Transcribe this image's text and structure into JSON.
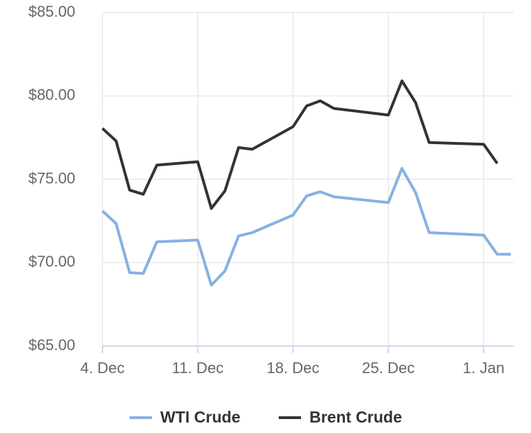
{
  "chart_data": {
    "type": "line",
    "x": [
      0,
      1,
      2,
      3,
      4,
      7,
      8,
      9,
      10,
      11,
      14,
      15,
      16,
      17,
      21,
      22,
      23,
      24,
      28,
      29,
      30
    ],
    "xlim": [
      0,
      30.2
    ],
    "xticks": [
      {
        "value": 0,
        "label": "4. Dec"
      },
      {
        "value": 7,
        "label": "11. Dec"
      },
      {
        "value": 14,
        "label": "18. Dec"
      },
      {
        "value": 21,
        "label": "25. Dec"
      },
      {
        "value": 28,
        "label": "1. Jan"
      }
    ],
    "ylim": [
      65,
      85
    ],
    "yticks": [
      {
        "value": 65,
        "label": "$65.00"
      },
      {
        "value": 70,
        "label": "$70.00"
      },
      {
        "value": 75,
        "label": "$75.00"
      },
      {
        "value": 80,
        "label": "$80.00"
      },
      {
        "value": 85,
        "label": "$85.00"
      }
    ],
    "grid": true,
    "legend": "bottom",
    "series": [
      {
        "name": "WTI Crude",
        "color": "#86b1e3",
        "values": [
          73.1,
          72.35,
          69.4,
          69.35,
          71.25,
          71.35,
          68.65,
          69.5,
          71.6,
          71.8,
          72.85,
          74.0,
          74.25,
          73.95,
          73.6,
          75.65,
          74.2,
          71.8,
          71.65,
          70.5,
          70.5
        ]
      },
      {
        "name": "Brent Crude",
        "color": "#333333",
        "values": [
          78.05,
          77.3,
          74.35,
          74.1,
          75.85,
          76.05,
          73.25,
          74.3,
          76.9,
          76.8,
          78.15,
          79.4,
          79.7,
          79.25,
          78.85,
          80.9,
          79.6,
          77.2,
          77.1,
          75.95,
          null
        ]
      }
    ]
  }
}
